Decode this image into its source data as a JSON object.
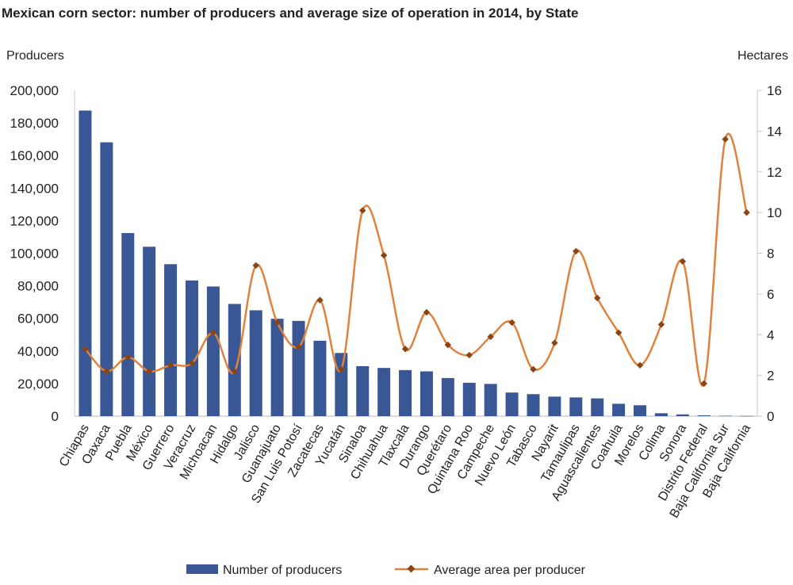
{
  "chart_data": {
    "type": "bar+line",
    "title": "Mexican corn sector: number of producers and average size of operation in 2014, by State",
    "ylabel_left": "Producers",
    "ylabel_right": "Hectares",
    "ylim_left": [
      0,
      200000
    ],
    "ylim_right": [
      0,
      16
    ],
    "yticks_left": [
      "0",
      "20,000",
      "40,000",
      "60,000",
      "80,000",
      "100,000",
      "120,000",
      "140,000",
      "160,000",
      "180,000",
      "200,000"
    ],
    "yticks_right": [
      "0",
      "2",
      "4",
      "6",
      "8",
      "10",
      "12",
      "14",
      "16"
    ],
    "grid": false,
    "legend_position": "bottom",
    "categories": [
      "Chiapas",
      "Oaxaca",
      "Puebla",
      "México",
      "Guerrero",
      "Veracruz",
      "Michoacan",
      "Hidalgo",
      "Jalisco",
      "Guanajuato",
      "San Luis Potosí",
      "Zacatecas",
      "Yucatán",
      "Sinaloa",
      "Chihuahua",
      "Tlaxcala",
      "Durango",
      "Querétaro",
      "Quintana Roo",
      "Campeche",
      "Nuevo León",
      "Tabasco",
      "Nayarit",
      "Tamaulipas",
      "Aguascalientes",
      "Coahuila",
      "Morelos",
      "Colima",
      "Sonora",
      "Distrito Federal",
      "Baja California Sur",
      "Baja California"
    ],
    "series": [
      {
        "name": "Number of producers",
        "type": "bar",
        "axis": "left",
        "color": "#3a5795",
        "values": [
          187600,
          168100,
          112400,
          104000,
          93300,
          83300,
          79600,
          68900,
          65000,
          59800,
          58500,
          46300,
          38800,
          30700,
          29600,
          28300,
          27500,
          23400,
          20500,
          19800,
          14500,
          13500,
          12000,
          11500,
          10900,
          7600,
          6700,
          1800,
          1100,
          500,
          200,
          100
        ]
      },
      {
        "name": "Average area per producer",
        "type": "line",
        "axis": "right",
        "color": "#e0823d",
        "marker_color": "#8b4513",
        "values": [
          3.3,
          2.2,
          2.9,
          2.2,
          2.5,
          2.6,
          4.1,
          2.2,
          7.4,
          4.6,
          3.4,
          5.7,
          2.3,
          10.1,
          7.9,
          3.3,
          5.1,
          3.5,
          3.0,
          3.9,
          4.6,
          2.3,
          3.6,
          8.1,
          5.8,
          4.1,
          2.5,
          4.5,
          7.6,
          1.6,
          13.6,
          10.0
        ]
      }
    ]
  }
}
